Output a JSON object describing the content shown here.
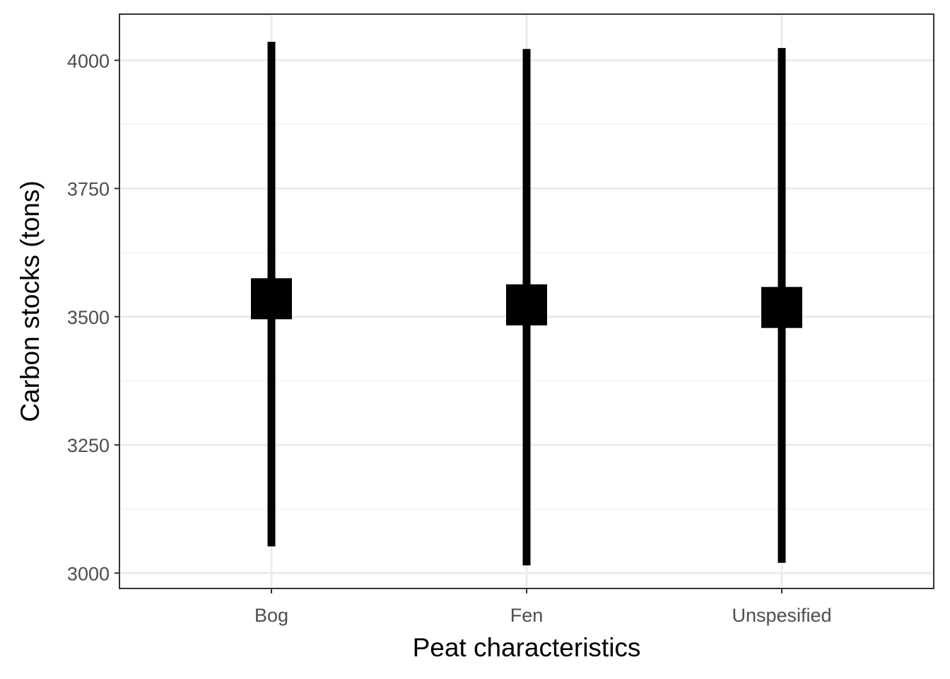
{
  "chart_data": {
    "type": "errorbar",
    "title": "",
    "xlabel": "Peat characteristics",
    "ylabel": "Carbon stocks (tons)",
    "categories": [
      "Bog",
      "Fen",
      "Unspesified"
    ],
    "points": [
      {
        "category": "Bog",
        "y": 3535,
        "ymin": 3052,
        "ymax": 4036
      },
      {
        "category": "Fen",
        "y": 3523,
        "ymin": 3015,
        "ymax": 4022
      },
      {
        "category": "Unspesified",
        "y": 3518,
        "ymin": 3020,
        "ymax": 4024
      }
    ],
    "ylim": [
      2970,
      4090
    ],
    "yticks": [
      3000,
      3250,
      3500,
      3750,
      4000
    ],
    "ytick_labels": [
      "3000",
      "3250",
      "3500",
      "3750",
      "4000"
    ],
    "grid": true,
    "legend": "none",
    "colors": {
      "mark": "#000000",
      "grid_major": "#ebebeb",
      "grid_minor": "#f2f2f2",
      "panel_border": "#333333",
      "tick_text": "#4d4d4d"
    }
  }
}
